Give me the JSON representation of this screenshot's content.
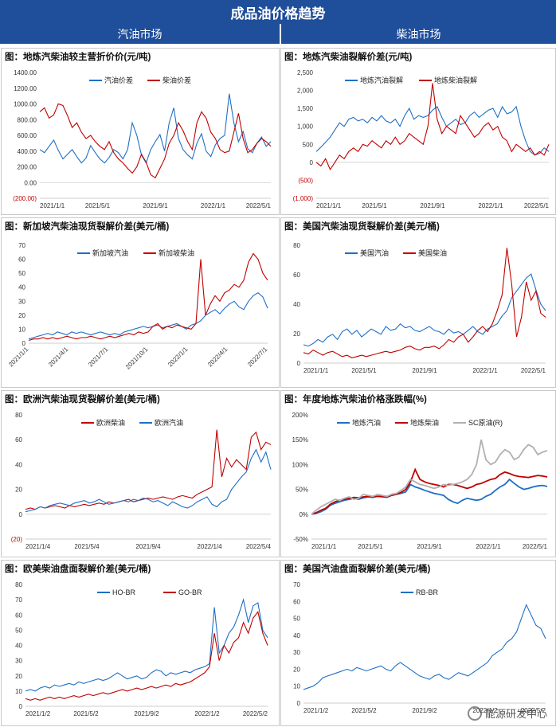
{
  "page": {
    "title": "成品油价格趋势",
    "left_section": "汽油市场",
    "right_section": "柴油市场",
    "watermark": "能源研发中心"
  },
  "colors": {
    "blue": "#1f6fc5",
    "red": "#c00000",
    "gray": "#b0b0b0",
    "header": "#1f4e9a"
  },
  "chart_data": [
    {
      "id": "c1",
      "type": "line",
      "title": "图：地炼汽柴油较主营折价价(元/吨)",
      "ylim": [
        -200,
        1400
      ],
      "yticks": [
        "1400.00",
        "1200.00",
        "1000.00",
        "800.00",
        "600.00",
        "400.00",
        "200.00",
        "0.00",
        "(200.00)"
      ],
      "xticks": [
        "2021/1/1",
        "2021/5/1",
        "2021/9/1",
        "2022/1/1",
        "2022/5/1"
      ],
      "legend_position": "top-center",
      "series": [
        {
          "name": "汽油价差",
          "color": "blue",
          "values": [
            420,
            380,
            460,
            540,
            410,
            300,
            360,
            420,
            330,
            250,
            310,
            470,
            380,
            300,
            250,
            320,
            420,
            380,
            300,
            420,
            760,
            600,
            350,
            250,
            420,
            520,
            610,
            400,
            760,
            950,
            560,
            420,
            350,
            300,
            500,
            620,
            400,
            330,
            480,
            560,
            600,
            1130,
            760,
            520,
            650,
            430,
            380,
            500,
            580,
            460,
            520
          ]
        },
        {
          "name": "柴油价差",
          "color": "red",
          "values": [
            900,
            950,
            820,
            860,
            1000,
            980,
            850,
            700,
            760,
            640,
            560,
            600,
            520,
            460,
            420,
            520,
            380,
            300,
            250,
            180,
            120,
            200,
            360,
            260,
            100,
            60,
            180,
            300,
            500,
            600,
            760,
            660,
            520,
            420,
            760,
            900,
            820,
            640,
            560,
            420,
            380,
            400,
            640,
            880,
            560,
            380,
            420,
            500,
            560,
            520,
            460
          ]
        }
      ]
    },
    {
      "id": "c2",
      "type": "line",
      "title": "图：地炼汽柴油裂解价差(元/吨)",
      "ylim": [
        -1000,
        2500
      ],
      "yticks": [
        "2,500",
        "2,000",
        "1,500",
        "1,000",
        "500",
        "0",
        "(500)",
        "(1,000)"
      ],
      "xticks": [
        "2021/1/1",
        "2021/5/1",
        "2021/9/1",
        "2022/1/1",
        "2022/5/1"
      ],
      "legend_position": "top-left",
      "series": [
        {
          "name": "地炼汽油裂解",
          "color": "blue",
          "values": [
            300,
            420,
            560,
            700,
            900,
            1100,
            1000,
            1200,
            1250,
            1150,
            1200,
            1100,
            1250,
            1150,
            1300,
            1150,
            1100,
            1200,
            1000,
            1300,
            1500,
            1200,
            1300,
            1250,
            1300,
            1450,
            1550,
            1250,
            1000,
            1100,
            1200,
            1050,
            1100,
            1300,
            1400,
            1250,
            1350,
            1450,
            1500,
            1250,
            1550,
            1350,
            1400,
            1550,
            1000,
            600,
            300,
            200,
            250,
            400,
            300
          ]
        },
        {
          "name": "地炼柴油裂解",
          "color": "red",
          "values": [
            0,
            -100,
            100,
            -200,
            0,
            200,
            100,
            300,
            400,
            300,
            500,
            450,
            600,
            500,
            400,
            600,
            500,
            700,
            500,
            600,
            800,
            700,
            600,
            500,
            1000,
            2200,
            1200,
            800,
            1000,
            900,
            800,
            1300,
            1100,
            900,
            700,
            800,
            1000,
            1100,
            900,
            1000,
            700,
            600,
            300,
            500,
            400,
            300,
            400,
            200,
            300,
            200,
            500
          ]
        }
      ]
    },
    {
      "id": "c3",
      "type": "line",
      "title": "图：新加坡汽柴油现货裂解价差(美元/桶)",
      "ylim": [
        0,
        70
      ],
      "yticks": [
        "70",
        "60",
        "50",
        "40",
        "30",
        "20",
        "10",
        "0"
      ],
      "xticks": [
        "2021/1/1",
        "2021/4/1",
        "2021/7/1",
        "2021/10/1",
        "2022/1/1",
        "2022/4/1",
        "2022/7/1"
      ],
      "legend_position": "top-center",
      "series": [
        {
          "name": "新加坡汽油",
          "color": "blue",
          "values": [
            3,
            4,
            5,
            6,
            7,
            6,
            8,
            7,
            6,
            8,
            7,
            8,
            7,
            6,
            7,
            8,
            7,
            6,
            7,
            6,
            8,
            9,
            10,
            11,
            12,
            11,
            12,
            13,
            11,
            12,
            13,
            14,
            12,
            10,
            13,
            14,
            16,
            20,
            22,
            24,
            21,
            25,
            28,
            30,
            26,
            24,
            30,
            34,
            36,
            33,
            25
          ]
        },
        {
          "name": "新加坡柴油",
          "color": "red",
          "values": [
            2,
            3,
            3,
            4,
            3,
            4,
            3,
            4,
            5,
            4,
            3,
            4,
            4,
            5,
            4,
            3,
            4,
            5,
            4,
            5,
            6,
            7,
            6,
            8,
            7,
            8,
            12,
            14,
            10,
            12,
            11,
            13,
            12,
            11,
            10,
            14,
            60,
            20,
            28,
            34,
            30,
            36,
            38,
            42,
            40,
            45,
            58,
            64,
            60,
            50,
            45
          ]
        }
      ]
    },
    {
      "id": "c4",
      "type": "line",
      "title": "图：美国汽柴油现货裂解价差(美元/桶)",
      "ylim": [
        0,
        90
      ],
      "yticks": [
        "80",
        "60",
        "40",
        "20",
        "0"
      ],
      "xticks": [
        "2021/1/1",
        "2021/5/1",
        "2021/9/1",
        "2022/1/1",
        "2022/5/1"
      ],
      "legend_position": "top-left",
      "series": [
        {
          "name": "美国汽油",
          "color": "blue",
          "values": [
            14,
            13,
            15,
            18,
            16,
            20,
            22,
            18,
            24,
            26,
            22,
            25,
            20,
            23,
            26,
            24,
            22,
            28,
            25,
            26,
            30,
            27,
            28,
            25,
            24,
            26,
            28,
            25,
            24,
            22,
            26,
            23,
            24,
            22,
            25,
            28,
            24,
            22,
            26,
            28,
            30,
            36,
            40,
            50,
            55,
            60,
            65,
            68,
            56,
            45,
            40
          ]
        },
        {
          "name": "美国柴油",
          "color": "red",
          "values": [
            8,
            7,
            10,
            8,
            6,
            8,
            9,
            7,
            5,
            6,
            4,
            5,
            6,
            5,
            6,
            7,
            8,
            9,
            8,
            9,
            10,
            12,
            13,
            11,
            10,
            12,
            12,
            13,
            11,
            14,
            18,
            16,
            20,
            22,
            16,
            20,
            25,
            28,
            24,
            30,
            40,
            52,
            88,
            60,
            20,
            35,
            62,
            48,
            55,
            38,
            35
          ]
        }
      ]
    },
    {
      "id": "c5",
      "type": "line",
      "title": "图：欧洲汽柴油现货裂解价差(美元/桶)",
      "ylim": [
        -20,
        80
      ],
      "yticks": [
        "80",
        "60",
        "40",
        "20",
        "0",
        "(20)"
      ],
      "xticks": [
        "2021/1/4",
        "2021/5/4",
        "2021/9/4",
        "2022/1/4",
        "2022/5/4"
      ],
      "legend_position": "top-center",
      "series": [
        {
          "name": "欧洲柴油",
          "color": "red",
          "values": [
            4,
            5,
            4,
            6,
            5,
            6,
            7,
            6,
            5,
            7,
            6,
            7,
            8,
            7,
            8,
            9,
            8,
            10,
            9,
            10,
            11,
            12,
            10,
            11,
            12,
            13,
            12,
            13,
            14,
            13,
            12,
            14,
            15,
            14,
            13,
            16,
            18,
            20,
            22,
            68,
            30,
            45,
            38,
            44,
            40,
            36,
            62,
            66,
            52,
            58,
            56
          ]
        },
        {
          "name": "欧洲汽油",
          "color": "blue",
          "values": [
            2,
            3,
            4,
            6,
            5,
            7,
            8,
            9,
            8,
            7,
            9,
            10,
            11,
            9,
            10,
            12,
            10,
            8,
            9,
            10,
            11,
            10,
            12,
            11,
            13,
            12,
            10,
            11,
            9,
            7,
            10,
            8,
            6,
            5,
            7,
            10,
            12,
            14,
            8,
            6,
            10,
            12,
            20,
            25,
            30,
            34,
            45,
            52,
            42,
            50,
            36
          ]
        }
      ]
    },
    {
      "id": "c6",
      "type": "line",
      "title": "图：年度地炼汽柴油价格涨跌幅(%)",
      "ylim": [
        -50,
        200
      ],
      "yticks": [
        "200%",
        "150%",
        "100%",
        "50%",
        "0%",
        "-50%"
      ],
      "xticks": [
        "2021/1/1",
        "2021/5/1",
        "2021/9/1",
        "2022/1/1",
        "2022/5/1"
      ],
      "legend_position": "top",
      "series": [
        {
          "name": "地炼汽油",
          "color": "blue",
          "values": [
            0,
            2,
            5,
            10,
            18,
            22,
            25,
            28,
            30,
            32,
            30,
            33,
            35,
            34,
            36,
            35,
            34,
            38,
            40,
            42,
            45,
            60,
            55,
            52,
            48,
            45,
            42,
            40,
            38,
            30,
            25,
            22,
            28,
            32,
            30,
            28,
            30,
            36,
            40,
            48,
            55,
            60,
            70,
            62,
            55,
            50,
            52,
            55,
            57,
            58,
            56
          ]
        },
        {
          "name": "地炼柴油",
          "color": "red",
          "values": [
            0,
            3,
            8,
            12,
            20,
            25,
            28,
            30,
            32,
            34,
            33,
            35,
            36,
            35,
            36,
            36,
            35,
            38,
            40,
            44,
            50,
            65,
            90,
            70,
            65,
            62,
            60,
            58,
            55,
            60,
            60,
            58,
            55,
            52,
            55,
            60,
            62,
            66,
            70,
            72,
            80,
            85,
            82,
            78,
            76,
            75,
            74,
            76,
            78,
            77,
            75
          ]
        },
        {
          "name": "SC原油(R)",
          "color": "gray",
          "values": [
            0,
            8,
            15,
            20,
            25,
            30,
            28,
            32,
            35,
            30,
            32,
            40,
            38,
            36,
            40,
            38,
            36,
            40,
            42,
            48,
            55,
            70,
            65,
            60,
            58,
            55,
            52,
            55,
            60,
            58,
            60,
            62,
            65,
            70,
            80,
            100,
            150,
            110,
            100,
            105,
            120,
            130,
            125,
            110,
            115,
            130,
            140,
            135,
            120,
            125,
            128
          ]
        }
      ]
    },
    {
      "id": "c7",
      "type": "line",
      "title": "图：欧美柴油盘面裂解价差(美元/桶)",
      "ylim": [
        0,
        80
      ],
      "yticks": [
        "80",
        "70",
        "60",
        "50",
        "40",
        "30",
        "20",
        "10",
        "0"
      ],
      "xticks": [
        "2021/1/2",
        "2021/5/2",
        "2021/9/2",
        "2022/1/2",
        "2022/5/2"
      ],
      "legend_position": "top-center",
      "series": [
        {
          "name": "HO-BR",
          "color": "blue",
          "values": [
            10,
            11,
            10,
            12,
            13,
            12,
            14,
            13,
            14,
            15,
            14,
            16,
            15,
            16,
            17,
            18,
            17,
            18,
            20,
            22,
            20,
            18,
            19,
            20,
            18,
            19,
            22,
            24,
            23,
            20,
            22,
            21,
            22,
            23,
            22,
            24,
            25,
            26,
            28,
            65,
            35,
            40,
            48,
            52,
            60,
            70,
            55,
            66,
            68,
            50,
            45
          ]
        },
        {
          "name": "GO-BR",
          "color": "red",
          "values": [
            5,
            4,
            5,
            4,
            5,
            6,
            5,
            6,
            5,
            6,
            7,
            6,
            7,
            8,
            7,
            8,
            9,
            8,
            9,
            10,
            11,
            10,
            11,
            12,
            11,
            12,
            13,
            12,
            13,
            14,
            13,
            15,
            14,
            15,
            16,
            18,
            20,
            22,
            26,
            48,
            30,
            40,
            35,
            42,
            45,
            55,
            48,
            58,
            62,
            48,
            40
          ]
        }
      ]
    },
    {
      "id": "c8",
      "type": "line",
      "title": "图：美国汽油盘面裂解价差(美元/桶)",
      "ylim": [
        0,
        70
      ],
      "yticks": [
        "70",
        "60",
        "50",
        "40",
        "30",
        "20",
        "10",
        "0"
      ],
      "xticks": [
        "2021/1/2",
        "2021/5/2",
        "2021/9/2",
        "2022/1/2",
        "2022/5/2"
      ],
      "legend_position": "top-center",
      "series": [
        {
          "name": "RB-BR",
          "color": "blue",
          "values": [
            8,
            9,
            10,
            12,
            15,
            16,
            17,
            18,
            19,
            20,
            19,
            21,
            20,
            19,
            20,
            21,
            22,
            20,
            19,
            22,
            24,
            22,
            20,
            18,
            16,
            15,
            14,
            16,
            17,
            15,
            14,
            16,
            18,
            17,
            16,
            18,
            20,
            22,
            24,
            28,
            30,
            32,
            36,
            38,
            42,
            50,
            58,
            52,
            46,
            44,
            38
          ]
        }
      ]
    }
  ]
}
